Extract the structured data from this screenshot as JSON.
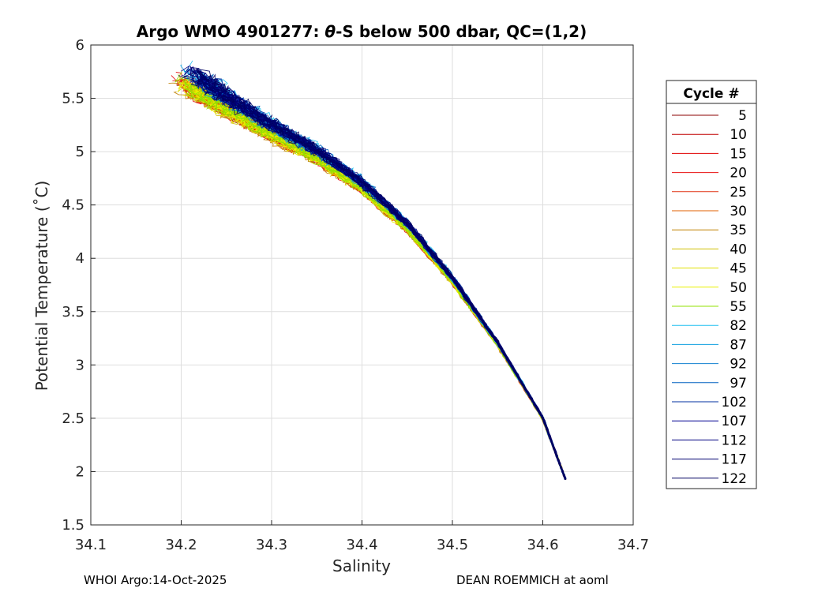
{
  "chart_data": {
    "type": "line",
    "title_prefix": "Argo WMO 4901277: ",
    "title_theta": "θ",
    "title_suffix": "-S below 500 dbar,  QC=(1,2)",
    "xlabel": "Salinity",
    "ylabel": "Potential Temperature (˚C)",
    "xlim": [
      34.1,
      34.7
    ],
    "ylim": [
      1.5,
      6
    ],
    "xticks": [
      "34.1",
      "34.2",
      "34.3",
      "34.4",
      "34.5",
      "34.6",
      "34.7"
    ],
    "yticks": [
      "1.5",
      "2",
      "2.5",
      "3",
      "3.5",
      "4",
      "4.5",
      "5",
      "5.5",
      "6"
    ],
    "grid": true,
    "legend": {
      "title": "Cycle #",
      "placement": "right",
      "entries": [
        "5",
        "10",
        "15",
        "20",
        "25",
        "30",
        "35",
        "40",
        "45",
        "50",
        "55",
        "82",
        "87",
        "92",
        "97",
        "102",
        "107",
        "112",
        "117",
        "122"
      ],
      "colors": [
        "#8b0000",
        "#c00000",
        "#e00000",
        "#e81010",
        "#e03010",
        "#e06000",
        "#c08000",
        "#d0c000",
        "#e0e000",
        "#e8f000",
        "#90e000",
        "#20c0f0",
        "#10a0e0",
        "#1080d0",
        "#0060c0",
        "#0030a0",
        "#000090",
        "#000080",
        "#000070",
        "#000060"
      ]
    },
    "series_shape": {
      "x": [
        34.2,
        34.25,
        34.3,
        34.35,
        34.4,
        34.45,
        34.5,
        34.55,
        34.6,
        34.625
      ],
      "y": [
        5.72,
        5.45,
        5.2,
        4.97,
        4.68,
        4.3,
        3.8,
        3.2,
        2.5,
        1.93
      ]
    }
  },
  "footer": {
    "left": "WHOI Argo:14-Oct-2025",
    "right": "DEAN ROEMMICH at aoml"
  }
}
